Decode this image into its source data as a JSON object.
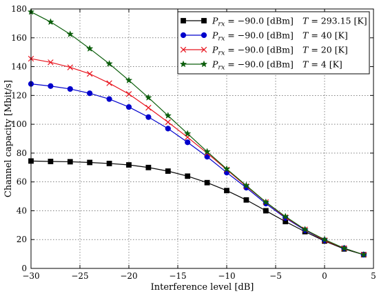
{
  "chart_data": {
    "type": "line",
    "xlabel": "Interference level [dB]",
    "ylabel": "Channel capacity [Mbit/s]",
    "xlim": [
      -30,
      5
    ],
    "ylim": [
      0,
      180
    ],
    "xticks": [
      -30,
      -25,
      -20,
      -15,
      -10,
      -5,
      0,
      5
    ],
    "yticks": [
      0,
      20,
      40,
      60,
      80,
      100,
      120,
      140,
      160,
      180
    ],
    "xtick_labels": [
      "−30",
      "−25",
      "−20",
      "−15",
      "−10",
      "−5",
      "0",
      "5"
    ],
    "ytick_labels": [
      "0",
      "20",
      "40",
      "60",
      "80",
      "100",
      "120",
      "140",
      "160",
      "180"
    ],
    "grid": true,
    "legend_position": "top-right",
    "x": [
      -30,
      -28,
      -26,
      -24,
      -22,
      -20,
      -18,
      -16,
      -14,
      -12,
      -10,
      -8,
      -6,
      -4,
      -2,
      0,
      2,
      4
    ],
    "series": [
      {
        "name": "Prx = −90.0 [dBm]   T = 293.15 [K]",
        "legend_left": "= −90.0 [dBm]",
        "legend_right": "= 293.15 [K]",
        "color": "#000000",
        "marker": "square",
        "values": [
          74.5,
          74.2,
          74.0,
          73.5,
          72.8,
          71.8,
          70.0,
          67.5,
          64.0,
          59.5,
          54.0,
          47.5,
          40.0,
          32.5,
          25.5,
          19.0,
          13.5,
          9.5
        ]
      },
      {
        "name": "Prx = −90.0 [dBm]   T = 40 [K]",
        "legend_left": "= −90.0 [dBm]",
        "legend_right": "= 40 [K]",
        "color": "#0000cc",
        "marker": "circle",
        "values": [
          128.0,
          126.5,
          124.5,
          121.5,
          117.5,
          112.0,
          105.0,
          97.0,
          87.5,
          77.5,
          66.5,
          56.0,
          45.0,
          35.0,
          26.5,
          19.5,
          14.0,
          9.5
        ]
      },
      {
        "name": "Prx = −90.0 [dBm]   T = 20 [K]",
        "legend_left": "= −90.0 [dBm]",
        "legend_right": "= 20 [K]",
        "color": "#e8141e",
        "marker": "x",
        "values": [
          145.5,
          143.0,
          139.5,
          135.0,
          128.5,
          121.0,
          111.5,
          101.5,
          91.0,
          80.0,
          68.5,
          57.0,
          46.0,
          35.5,
          27.0,
          19.5,
          14.0,
          9.5
        ]
      },
      {
        "name": "Prx = −90.0 [dBm]   T = 4 [K]",
        "legend_left": "= −90.0 [dBm]",
        "legend_right": "= 4 [K]",
        "color": "#0b5e0b",
        "marker": "star",
        "values": [
          178.0,
          171.0,
          162.5,
          152.5,
          142.0,
          130.5,
          118.5,
          106.0,
          93.5,
          81.0,
          69.0,
          57.5,
          46.0,
          36.0,
          27.0,
          20.0,
          14.0,
          9.5
        ]
      }
    ]
  },
  "legend_labels": {
    "p_symbol": "P",
    "p_subscript": "rx",
    "t_symbol": "T"
  }
}
